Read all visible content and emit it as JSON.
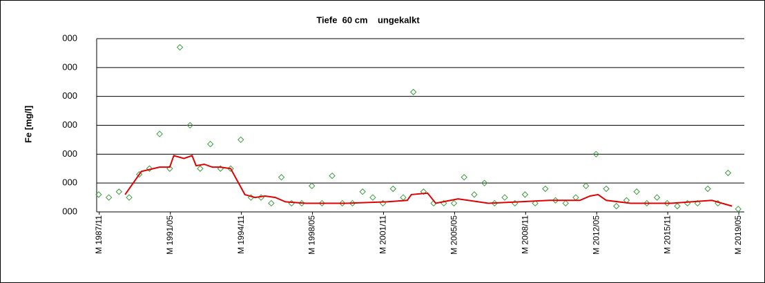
{
  "chart_data": {
    "type": "scatter",
    "title": "Tiefe  60 cm    ungekalkt",
    "ylabel": "Fe [mg/l]",
    "xlim": [
      1987.7,
      2019.6
    ],
    "xticks": [
      {
        "value": 1987.83,
        "label": "M 1987/11"
      },
      {
        "value": 1991.33,
        "label": "M 1991/05"
      },
      {
        "value": 1994.83,
        "label": "M 1994/11"
      },
      {
        "value": 1998.33,
        "label": "M 1998/05"
      },
      {
        "value": 2001.83,
        "label": "M 2001/11"
      },
      {
        "value": 2005.33,
        "label": "M 2005/05"
      },
      {
        "value": 2008.83,
        "label": "M 2008/11"
      },
      {
        "value": 2012.33,
        "label": "M 2012/05"
      },
      {
        "value": 2015.83,
        "label": "M 2015/11"
      },
      {
        "value": 2019.33,
        "label": "M 2019/05"
      }
    ],
    "ylim": [
      0,
      6
    ],
    "yticks": [
      {
        "value": 0,
        "label": "000"
      },
      {
        "value": 1,
        "label": "000"
      },
      {
        "value": 2,
        "label": "000"
      },
      {
        "value": 3,
        "label": "000"
      },
      {
        "value": 4,
        "label": "000"
      },
      {
        "value": 5,
        "label": "000"
      },
      {
        "value": 6,
        "label": "000"
      }
    ],
    "grid": true,
    "series": [
      {
        "style": "markers",
        "color": "#3a9a3a",
        "x": [
          1987.8,
          1988.3,
          1988.8,
          1989.3,
          1989.8,
          1990.3,
          1990.8,
          1991.3,
          1991.8,
          1992.3,
          1992.8,
          1993.3,
          1993.8,
          1994.3,
          1994.8,
          1995.3,
          1995.8,
          1996.3,
          1996.8,
          1997.3,
          1997.8,
          1998.3,
          1998.8,
          1999.3,
          1999.8,
          2000.3,
          2000.8,
          2001.3,
          2001.8,
          2002.3,
          2002.8,
          2003.3,
          2003.8,
          2004.3,
          2004.8,
          2005.3,
          2005.8,
          2006.3,
          2006.8,
          2007.3,
          2007.8,
          2008.3,
          2008.8,
          2009.3,
          2009.8,
          2010.3,
          2010.8,
          2011.3,
          2011.8,
          2012.3,
          2012.8,
          2013.3,
          2013.8,
          2014.3,
          2014.8,
          2015.3,
          2015.8,
          2016.3,
          2016.8,
          2017.3,
          2017.8,
          2018.3,
          2018.8,
          2019.3
        ],
        "values": [
          0.6,
          0.5,
          0.7,
          0.5,
          1.3,
          1.5,
          2.7,
          1.5,
          5.7,
          3.0,
          1.5,
          2.35,
          1.5,
          1.5,
          2.5,
          0.5,
          0.5,
          0.3,
          1.2,
          0.3,
          0.3,
          0.9,
          0.3,
          1.25,
          0.3,
          0.3,
          0.7,
          0.5,
          0.3,
          0.8,
          0.5,
          4.15,
          0.7,
          0.3,
          0.3,
          0.3,
          1.2,
          0.6,
          1.0,
          0.3,
          0.5,
          0.3,
          0.6,
          0.3,
          0.8,
          0.4,
          0.3,
          0.5,
          0.9,
          2.0,
          0.8,
          0.2,
          0.4,
          0.7,
          0.3,
          0.5,
          0.3,
          0.2,
          0.3,
          0.3,
          0.8,
          0.3,
          1.35,
          0.1
        ]
      },
      {
        "style": "line",
        "color": "#e00000",
        "x": [
          1989.1,
          1989.9,
          1990.8,
          1991.3,
          1991.5,
          1992.0,
          1992.4,
          1992.6,
          1993.0,
          1993.4,
          1993.8,
          1994.3,
          1995.0,
          1995.5,
          1996.0,
          1996.5,
          1997.0,
          1998.0,
          2000.0,
          2002.0,
          2003.0,
          2003.2,
          2004.0,
          2004.4,
          2005.5,
          2006.0,
          2007.0,
          2010.0,
          2011.5,
          2012.0,
          2012.4,
          2012.8,
          2014.0,
          2016.0,
          2018.0,
          2019.0
        ],
        "values": [
          0.6,
          1.4,
          1.55,
          1.55,
          1.95,
          1.85,
          1.95,
          1.6,
          1.65,
          1.55,
          1.55,
          1.5,
          0.6,
          0.5,
          0.55,
          0.5,
          0.35,
          0.3,
          0.3,
          0.35,
          0.4,
          0.6,
          0.65,
          0.3,
          0.45,
          0.4,
          0.3,
          0.4,
          0.4,
          0.55,
          0.6,
          0.4,
          0.3,
          0.3,
          0.4,
          0.2
        ]
      }
    ]
  }
}
